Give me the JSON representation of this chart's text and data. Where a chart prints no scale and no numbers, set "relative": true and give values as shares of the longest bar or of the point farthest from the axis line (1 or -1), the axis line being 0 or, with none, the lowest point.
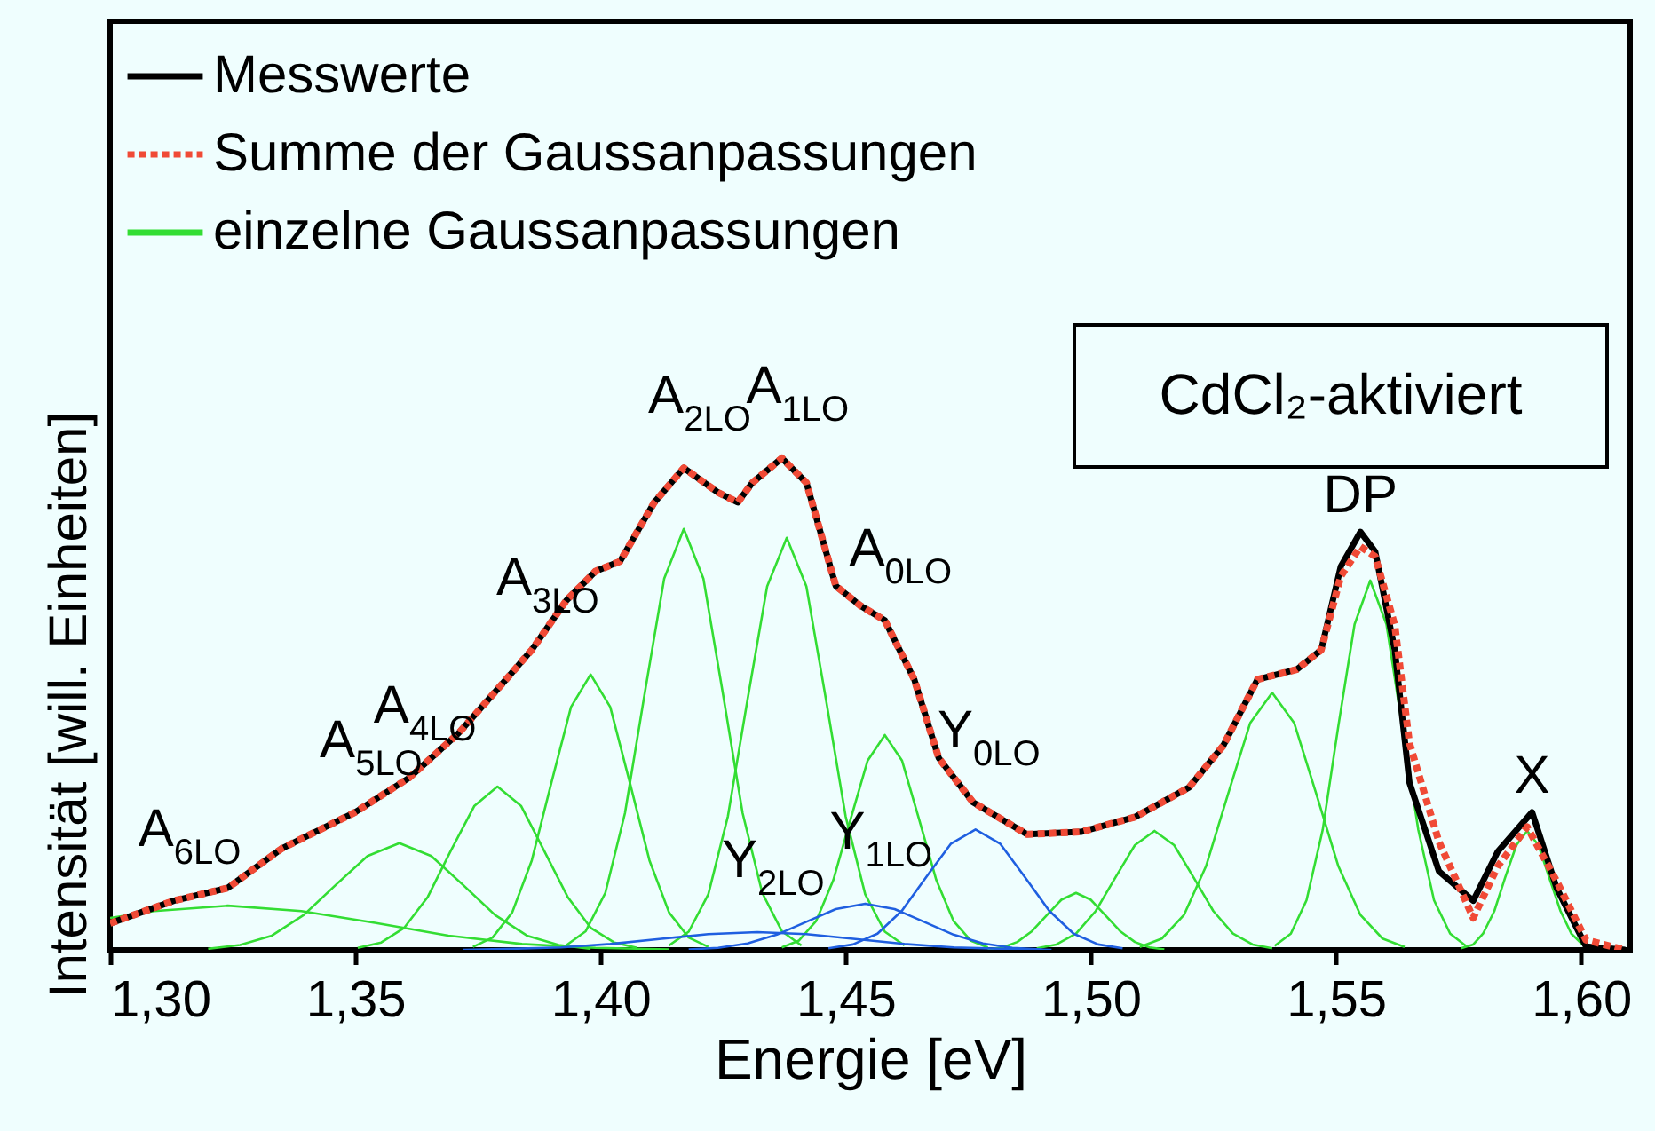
{
  "chart_data": {
    "type": "line",
    "relative": true,
    "xlabel": "Energie [eV]",
    "ylabel": "Intensität [will. Einheiten]",
    "xlim": [
      1.3,
      1.61
    ],
    "xticks": [
      {
        "value": 1.3,
        "label": "1,30"
      },
      {
        "value": 1.35,
        "label": "1,35"
      },
      {
        "value": 1.4,
        "label": "1,40"
      },
      {
        "value": 1.45,
        "label": "1,45"
      },
      {
        "value": 1.5,
        "label": "1,50"
      },
      {
        "value": 1.55,
        "label": "1,55"
      },
      {
        "value": 1.6,
        "label": "1,60"
      }
    ],
    "tick_labels": "x",
    "grid": false,
    "legend": "top left",
    "marker": "none",
    "series": [
      {
        "name": "Messwerte",
        "color": "#000000",
        "line_style": "solid",
        "x": [
          1.3,
          1.313,
          1.324,
          1.335,
          1.35,
          1.361,
          1.371,
          1.379,
          1.386,
          1.393,
          1.399,
          1.404,
          1.411,
          1.417,
          1.424,
          1.428,
          1.431,
          1.437,
          1.442,
          1.448,
          1.453,
          1.458,
          1.464,
          1.469,
          1.476,
          1.487,
          1.498,
          1.509,
          1.52,
          1.527,
          1.534,
          1.542,
          1.547,
          1.551,
          1.555,
          1.558,
          1.562,
          1.565,
          1.571,
          1.578,
          1.583,
          1.59,
          1.595,
          1.601,
          1.609
        ],
        "values": [
          0.054,
          0.1,
          0.126,
          0.206,
          0.28,
          0.35,
          0.44,
          0.53,
          0.61,
          0.71,
          0.77,
          0.79,
          0.91,
          0.98,
          0.93,
          0.91,
          0.95,
          1.0,
          0.95,
          0.74,
          0.7,
          0.67,
          0.55,
          0.39,
          0.3,
          0.235,
          0.24,
          0.27,
          0.33,
          0.415,
          0.55,
          0.57,
          0.61,
          0.78,
          0.85,
          0.81,
          0.61,
          0.34,
          0.16,
          0.1,
          0.2,
          0.28,
          0.126,
          0.007,
          0
        ]
      },
      {
        "name": "Summe der Gaussanpassungen",
        "color": "#f04a36",
        "line_style": "dotted",
        "x": [
          1.3,
          1.313,
          1.324,
          1.335,
          1.35,
          1.361,
          1.371,
          1.379,
          1.386,
          1.393,
          1.399,
          1.404,
          1.411,
          1.417,
          1.424,
          1.428,
          1.431,
          1.437,
          1.442,
          1.448,
          1.453,
          1.458,
          1.464,
          1.469,
          1.476,
          1.487,
          1.498,
          1.509,
          1.52,
          1.527,
          1.534,
          1.542,
          1.547,
          1.551,
          1.555,
          1.558,
          1.562,
          1.565,
          1.571,
          1.578,
          1.583,
          1.589,
          1.595,
          1.601,
          1.609
        ],
        "values": [
          0.054,
          0.1,
          0.126,
          0.206,
          0.28,
          0.35,
          0.44,
          0.53,
          0.61,
          0.71,
          0.77,
          0.79,
          0.91,
          0.98,
          0.93,
          0.91,
          0.95,
          1.0,
          0.95,
          0.74,
          0.7,
          0.67,
          0.55,
          0.39,
          0.3,
          0.235,
          0.24,
          0.27,
          0.33,
          0.415,
          0.55,
          0.57,
          0.61,
          0.76,
          0.82,
          0.8,
          0.66,
          0.42,
          0.22,
          0.065,
          0.17,
          0.25,
          0.14,
          0.02,
          0
        ]
      },
      {
        "name": "einzelne Gaussanpassungen",
        "color": "#33dd33",
        "line_style": "solid",
        "x": [
          1.3,
          1.309,
          1.324,
          1.339,
          1.354,
          1.369,
          1.384,
          1.399,
          1.414
        ],
        "values": [
          0.065,
          0.079,
          0.09,
          0.079,
          0.055,
          0.029,
          0.012,
          0.004,
          0.001
        ]
      },
      {
        "color": "#33dd33",
        "line_style": "solid",
        "x": [
          1.32,
          1.3265,
          1.333,
          1.3395,
          1.346,
          1.3525,
          1.359,
          1.3655,
          1.372,
          1.3785,
          1.385,
          1.3915,
          1.398
        ],
        "values": [
          0.002,
          0.01,
          0.029,
          0.071,
          0.132,
          0.191,
          0.217,
          0.191,
          0.132,
          0.071,
          0.029,
          0.01,
          0.002
        ]
      },
      {
        "color": "#33dd33",
        "line_style": "solid",
        "x": [
          1.3505,
          1.3553,
          1.36,
          1.3648,
          1.3695,
          1.3743,
          1.379,
          1.3838,
          1.3885,
          1.3933,
          1.398,
          1.4028,
          1.4075
        ],
        "values": [
          0.004,
          0.015,
          0.045,
          0.108,
          0.202,
          0.293,
          0.332,
          0.293,
          0.202,
          0.108,
          0.045,
          0.015,
          0.004
        ]
      },
      {
        "color": "#33dd33",
        "line_style": "solid",
        "x": [
          1.374,
          1.378,
          1.382,
          1.386,
          1.39,
          1.394,
          1.398,
          1.402,
          1.406,
          1.41,
          1.414,
          1.418,
          1.422
        ],
        "values": [
          0.006,
          0.025,
          0.076,
          0.182,
          0.34,
          0.494,
          0.56,
          0.494,
          0.34,
          0.182,
          0.076,
          0.025,
          0.006
        ]
      },
      {
        "color": "#33dd33",
        "line_style": "solid",
        "x": [
          1.393,
          1.397,
          1.401,
          1.405,
          1.409,
          1.413,
          1.417,
          1.421,
          1.425,
          1.429,
          1.433,
          1.437,
          1.441
        ],
        "values": [
          0.009,
          0.038,
          0.116,
          0.278,
          0.52,
          0.755,
          0.856,
          0.755,
          0.52,
          0.278,
          0.116,
          0.038,
          0.009
        ]
      },
      {
        "color": "#33dd33",
        "line_style": "solid",
        "x": [
          1.414,
          1.418,
          1.422,
          1.426,
          1.43,
          1.434,
          1.438,
          1.442,
          1.446,
          1.45,
          1.454,
          1.458,
          1.462
        ],
        "values": [
          0.009,
          0.037,
          0.113,
          0.272,
          0.509,
          0.739,
          0.838,
          0.739,
          0.509,
          0.272,
          0.113,
          0.037,
          0.009
        ]
      },
      {
        "color": "#33dd33",
        "line_style": "solid",
        "x": [
          1.437,
          1.4405,
          1.444,
          1.4475,
          1.451,
          1.4545,
          1.458,
          1.4615,
          1.465,
          1.4685,
          1.472,
          1.4755,
          1.479
        ],
        "values": [
          0.005,
          0.019,
          0.059,
          0.142,
          0.265,
          0.385,
          0.437,
          0.385,
          0.265,
          0.142,
          0.059,
          0.019,
          0.005
        ]
      },
      {
        "color": "#33dd33",
        "line_style": "solid",
        "x": [
          1.479,
          1.482,
          1.485,
          1.488,
          1.491,
          1.494,
          1.497,
          1.5,
          1.503,
          1.506,
          1.509,
          1.512,
          1.515
        ],
        "values": [
          0.001,
          0.005,
          0.016,
          0.038,
          0.07,
          0.102,
          0.116,
          0.102,
          0.07,
          0.038,
          0.016,
          0.005,
          0.001
        ]
      },
      {
        "color": "#33dd33",
        "line_style": "solid",
        "x": [
          1.489,
          1.493,
          1.497,
          1.501,
          1.505,
          1.509,
          1.513,
          1.517,
          1.521,
          1.525,
          1.529,
          1.533,
          1.537
        ],
        "values": [
          0.003,
          0.011,
          0.033,
          0.079,
          0.147,
          0.213,
          0.242,
          0.213,
          0.147,
          0.079,
          0.033,
          0.011,
          0.003
        ]
      },
      {
        "color": "#33dd33",
        "line_style": "solid",
        "x": [
          1.51,
          1.5145,
          1.519,
          1.5235,
          1.528,
          1.5325,
          1.537,
          1.5415,
          1.546,
          1.5505,
          1.555,
          1.5595,
          1.564
        ],
        "values": [
          0.006,
          0.023,
          0.071,
          0.17,
          0.317,
          0.461,
          0.523,
          0.461,
          0.317,
          0.17,
          0.071,
          0.023,
          0.006
        ]
      },
      {
        "color": "#33dd33",
        "line_style": "solid",
        "x": [
          1.5375,
          1.5408,
          1.544,
          1.5473,
          1.5505,
          1.5538,
          1.557,
          1.5603,
          1.5635,
          1.5668,
          1.57,
          1.5733,
          1.5765
        ],
        "values": [
          0.008,
          0.033,
          0.101,
          0.244,
          0.456,
          0.662,
          0.751,
          0.662,
          0.456,
          0.244,
          0.101,
          0.033,
          0.008
        ]
      },
      {
        "color": "#33dd33",
        "line_style": "solid",
        "x": [
          1.5755,
          1.578,
          1.58,
          1.5823,
          1.5845,
          1.5868,
          1.589,
          1.5913,
          1.5935,
          1.5958,
          1.598,
          1.6003,
          1.6025
        ],
        "values": [
          0.003,
          0.011,
          0.033,
          0.079,
          0.147,
          0.213,
          0.242,
          0.213,
          0.147,
          0.079,
          0.033,
          0.011,
          0.003
        ]
      },
      {
        "color": "#1f5fe0",
        "line_style": "solid",
        "x": [
          1.4465,
          1.4515,
          1.4565,
          1.4615,
          1.4665,
          1.4715,
          1.4765,
          1.4815,
          1.4865,
          1.4915,
          1.4965,
          1.5015,
          1.5065
        ],
        "values": [
          0.003,
          0.011,
          0.033,
          0.08,
          0.149,
          0.216,
          0.245,
          0.216,
          0.149,
          0.08,
          0.033,
          0.011,
          0.003
        ]
      },
      {
        "color": "#1f5fe0",
        "line_style": "solid",
        "x": [
          1.418,
          1.424,
          1.43,
          1.436,
          1.442,
          1.448,
          1.454,
          1.46,
          1.466,
          1.472,
          1.478,
          1.484,
          1.49
        ],
        "values": [
          0.001,
          0.004,
          0.013,
          0.031,
          0.057,
          0.083,
          0.094,
          0.083,
          0.057,
          0.031,
          0.013,
          0.004,
          0.001
        ]
      },
      {
        "color": "#1f5fe0",
        "line_style": "solid",
        "x": [
          1.372,
          1.382,
          1.392,
          1.402,
          1.412,
          1.422,
          1.432,
          1.442,
          1.452,
          1.462,
          1.472,
          1.482,
          1.492
        ],
        "values": [
          0,
          0.002,
          0.005,
          0.012,
          0.022,
          0.032,
          0.036,
          0.032,
          0.022,
          0.012,
          0.005,
          0.002,
          0
        ]
      }
    ],
    "annotations": [
      "CdCl₂-aktiviert",
      {
        "text": "A$_{6LO}$",
        "x": 1.313,
        "y": 0.1
      },
      {
        "text": "A$_{5LO}$",
        "x": 1.35,
        "y": 0.28
      },
      {
        "text": "A$_{4LO}$",
        "x": 1.361,
        "y": 0.35
      },
      {
        "text": "A$_{3LO}$",
        "x": 1.386,
        "y": 0.61
      },
      {
        "text": "A$_{2LO}$",
        "x": 1.417,
        "y": 0.98
      },
      {
        "text": "A$_{1LO}$",
        "x": 1.437,
        "y": 1.0
      },
      {
        "text": "A$_{0LO}$",
        "x": 1.458,
        "y": 0.67
      },
      {
        "text": "Y$_{0LO}$",
        "x": 1.476,
        "y": 0.3
      },
      {
        "text": "Y$_{1LO}$",
        "x": 1.454,
        "y": 0.094
      },
      {
        "text": "Y$_{2LO}$",
        "x": 1.432,
        "y": 0.036
      },
      {
        "text": "DP",
        "x": 1.555,
        "y": 0.85
      },
      {
        "text": "X",
        "x": 1.59,
        "y": 0.28
      }
    ]
  }
}
